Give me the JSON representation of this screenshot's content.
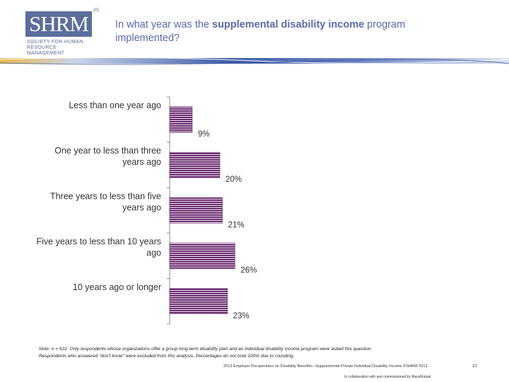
{
  "logo": {
    "letters": "SHRM",
    "line1": "SOCIETY FOR HUMAN",
    "line2": "RESOURCE MANAGEMENT",
    "registered": "(R)"
  },
  "header": {
    "title_before": "In what year was the ",
    "title_bold": "supplemental disability income",
    "title_after": " program implemented?"
  },
  "colors": {
    "bar_fill": "#6b2a6f",
    "bar_stripe": "#e8e0ea",
    "axis": "#888888",
    "title": "#5a6aa6",
    "banner_blue": "#3f5ca8",
    "banner_gold": "#d4a640"
  },
  "chart_data": {
    "type": "bar",
    "orientation": "horizontal",
    "categories": [
      [
        "Less than one year ago"
      ],
      [
        "One year to less than three",
        "years ago"
      ],
      [
        "Three years to less than five",
        "years ago"
      ],
      [
        "Five years to less than 10 years",
        "ago"
      ],
      [
        "10 years ago or longer"
      ]
    ],
    "values": [
      9,
      20,
      21,
      26,
      23
    ],
    "value_labels": [
      "9%",
      "20%",
      "21%",
      "26%",
      "23%"
    ],
    "xlim": [
      0,
      100
    ],
    "grid": false
  },
  "note": {
    "line1": "Note: n = 522. Only respondents whose organizations offer a group long-term disability plan and an individual disability income program were asked this question.",
    "line2": "Respondents who answered \"don't know\" were excluded from this analysis. Percentages do not total 100% due to rounding."
  },
  "footer": {
    "line1": "2013 Employer Perspectives on Disability Benefits—Supplemental Private Individual Disability Income ©SHRM 2013",
    "line2": "In collaboration with and commissioned by MassMutual",
    "page": "10"
  }
}
